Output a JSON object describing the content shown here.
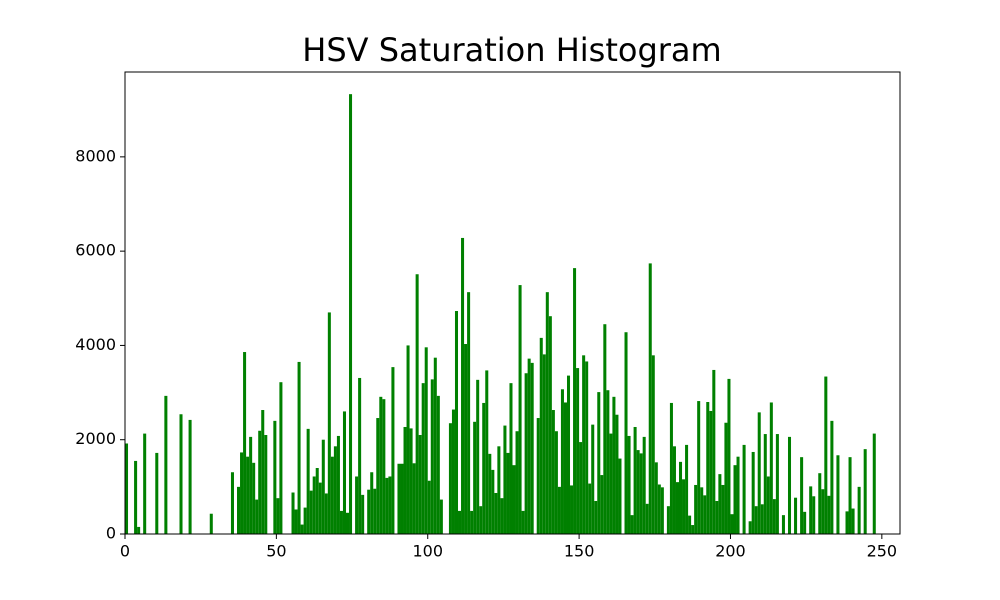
{
  "chart_data": {
    "type": "histogram",
    "title": "HSV Saturation Histogram",
    "color": "#008000",
    "bins": [
      0,
      1,
      2,
      3,
      4,
      5,
      6,
      7,
      8,
      9,
      10,
      11,
      12,
      13,
      14,
      15,
      16,
      17,
      18,
      19,
      20,
      21,
      22,
      23,
      24,
      25,
      26,
      27,
      28,
      29,
      30,
      31,
      32,
      33,
      34,
      35,
      36,
      37,
      38,
      39,
      40,
      41,
      42,
      43,
      44,
      45,
      46,
      47,
      48,
      49,
      50,
      51,
      52,
      53,
      54,
      55,
      56,
      57,
      58,
      59,
      60,
      61,
      62,
      63,
      64,
      65,
      66,
      67,
      68,
      69,
      70,
      71,
      72,
      73,
      74,
      75,
      76,
      77,
      78,
      79,
      80,
      81,
      82,
      83,
      84,
      85,
      86,
      87,
      88,
      89,
      90,
      91,
      92,
      93,
      94,
      95,
      96,
      97,
      98,
      99,
      100,
      101,
      102,
      103,
      104,
      105,
      106,
      107,
      108,
      109,
      110,
      111,
      112,
      113,
      114,
      115,
      116,
      117,
      118,
      119,
      120,
      121,
      122,
      123,
      124,
      125,
      126,
      127,
      128,
      129,
      130,
      131,
      132,
      133,
      134,
      135,
      136,
      137,
      138,
      139,
      140,
      141,
      142,
      143,
      144,
      145,
      146,
      147,
      148,
      149,
      150,
      151,
      152,
      153,
      154,
      155,
      156,
      157,
      158,
      159,
      160,
      161,
      162,
      163,
      164,
      165,
      166,
      167,
      168,
      169,
      170,
      171,
      172,
      173,
      174,
      175,
      176,
      177,
      178,
      179,
      180,
      181,
      182,
      183,
      184,
      185,
      186,
      187,
      188,
      189,
      190,
      191,
      192,
      193,
      194,
      195,
      196,
      197,
      198,
      199,
      200,
      201,
      202,
      203,
      204,
      205,
      206,
      207,
      208,
      209,
      210,
      211,
      212,
      213,
      214,
      215,
      216,
      217,
      218,
      219,
      220,
      221,
      222,
      223,
      224,
      225,
      226,
      227,
      228,
      229,
      230,
      231,
      232,
      233,
      234,
      235,
      236,
      237,
      238,
      239,
      240,
      241,
      242,
      243,
      244,
      245,
      246,
      247,
      248,
      249,
      250,
      251,
      252,
      253,
      254,
      255,
      256
    ],
    "counts": [
      1920,
      0,
      0,
      1550,
      150,
      0,
      2130,
      0,
      0,
      0,
      1720,
      0,
      0,
      2930,
      0,
      0,
      0,
      0,
      2540,
      0,
      0,
      2420,
      0,
      0,
      0,
      0,
      0,
      0,
      430,
      0,
      0,
      0,
      0,
      0,
      0,
      1310,
      0,
      1000,
      1730,
      3860,
      1640,
      2060,
      1510,
      730,
      2190,
      2630,
      2100,
      0,
      0,
      2400,
      760,
      3220,
      0,
      0,
      0,
      880,
      520,
      3650,
      200,
      560,
      2230,
      920,
      1220,
      1400,
      1090,
      2000,
      860,
      4700,
      1640,
      1860,
      2080,
      490,
      2600,
      450,
      9330,
      0,
      1220,
      3310,
      830,
      0,
      940,
      1310,
      960,
      2460,
      2910,
      2860,
      1190,
      1220,
      3540,
      0,
      1490,
      1490,
      2270,
      4000,
      2240,
      1500,
      5510,
      2100,
      3200,
      3960,
      1130,
      3280,
      3740,
      2930,
      730,
      0,
      0,
      2350,
      2640,
      4730,
      490,
      6280,
      4030,
      5130,
      490,
      2380,
      3270,
      590,
      2780,
      3470,
      1700,
      1360,
      870,
      1860,
      760,
      2300,
      1720,
      3200,
      1460,
      2180,
      5280,
      490,
      3410,
      3720,
      3630,
      0,
      2460,
      4160,
      3810,
      5130,
      4620,
      2630,
      2180,
      1000,
      3070,
      2790,
      3360,
      1030,
      5640,
      3520,
      1950,
      3790,
      3660,
      1070,
      2320,
      700,
      3010,
      1250,
      4450,
      3050,
      2130,
      2910,
      2530,
      1600,
      0,
      4280,
      2080,
      400,
      2270,
      1780,
      1710,
      2060,
      640,
      5740,
      3790,
      1520,
      1050,
      990,
      0,
      590,
      2780,
      1860,
      1100,
      1530,
      1160,
      1890,
      390,
      190,
      1040,
      2820,
      990,
      820,
      2800,
      2610,
      3480,
      700,
      1270,
      1040,
      2360,
      3290,
      420,
      1460,
      1640,
      0,
      1890,
      0,
      270,
      1740,
      590,
      2580,
      630,
      2120,
      1220,
      2790,
      740,
      2120,
      0,
      400,
      0,
      2060,
      0,
      770,
      0,
      1630,
      470,
      0,
      1010,
      800,
      0,
      1290,
      950,
      3340,
      810,
      2400,
      0,
      1670,
      0,
      0,
      480,
      1630,
      540,
      0,
      1000,
      0,
      1800,
      0,
      0,
      2130,
      0,
      0,
      0,
      0,
      0,
      0,
      0,
      0
    ],
    "xlim": [
      0,
      256
    ],
    "ylim": [
      0,
      9800
    ],
    "xticks": [
      0,
      50,
      100,
      150,
      200,
      250
    ],
    "yticks": [
      0,
      2000,
      4000,
      6000,
      8000
    ]
  }
}
